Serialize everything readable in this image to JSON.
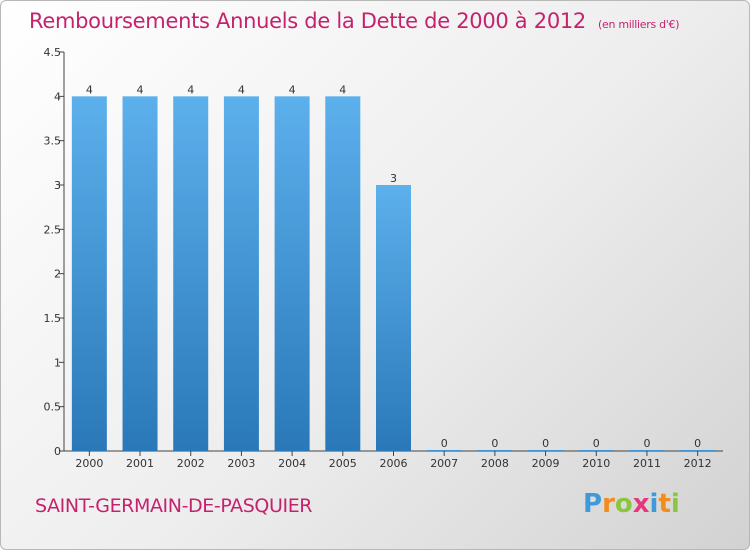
{
  "title": "Remboursements Annuels de la Dette de 2000 à 2012",
  "subtitle": "(en milliers d'€)",
  "place": "SAINT-GERMAIN-DE-PASQUIER",
  "logo": {
    "letters": [
      {
        "char": "P",
        "color": "#3e9ad8"
      },
      {
        "char": "r",
        "color": "#f28c1a"
      },
      {
        "char": "o",
        "color": "#8cc63f"
      },
      {
        "char": "x",
        "color": "#e53a7a"
      },
      {
        "char": "i",
        "color": "#3e9ad8"
      },
      {
        "char": "t",
        "color": "#f28c1a"
      },
      {
        "char": "i",
        "color": "#8cc63f"
      }
    ]
  },
  "colors": {
    "bar_top": "#5cb0ec",
    "bar_bottom": "#2a78b8",
    "accent": "#c5226e"
  },
  "chart_data": {
    "type": "bar",
    "title": "Remboursements Annuels de la Dette de 2000 à 2012",
    "categories": [
      "2000",
      "2001",
      "2002",
      "2003",
      "2004",
      "2005",
      "2006",
      "2007",
      "2008",
      "2009",
      "2010",
      "2011",
      "2012"
    ],
    "values": [
      4,
      4,
      4,
      4,
      4,
      4,
      3,
      0,
      0,
      0,
      0,
      0,
      0
    ],
    "data_labels": [
      "4",
      "4",
      "4",
      "4",
      "4",
      "4",
      "3",
      "0",
      "0",
      "0",
      "0",
      "0",
      "0"
    ],
    "yticks": [
      "0",
      "0.5",
      "1",
      "1.5",
      "2",
      "2.5",
      "3",
      "3.5",
      "4",
      "4.5"
    ],
    "ylim": [
      0,
      4.5
    ],
    "xlabel": "",
    "ylabel": "",
    "grid": false,
    "legend": "none"
  }
}
